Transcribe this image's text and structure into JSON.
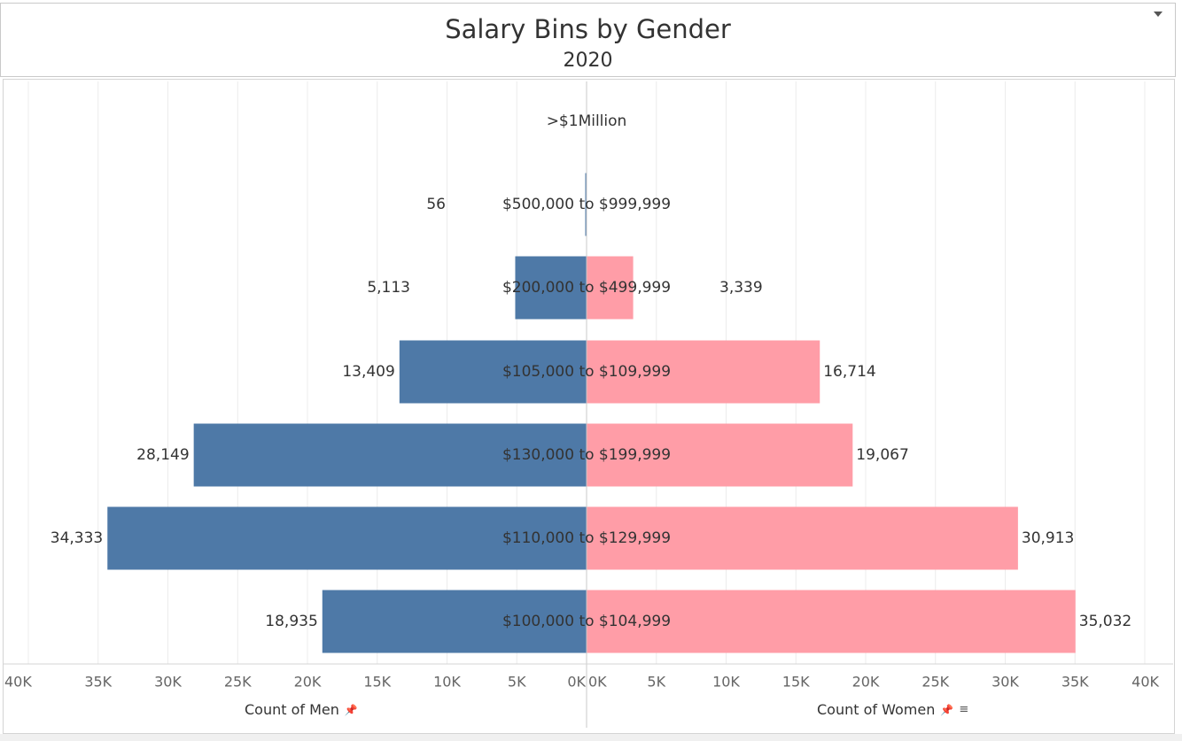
{
  "header": {
    "title": "Salary Bins by Gender",
    "subtitle": "2020"
  },
  "axes": {
    "left_title": "Count of Men",
    "right_title": "Count of Women",
    "left_ticks": [
      "40K",
      "35K",
      "30K",
      "25K",
      "20K",
      "15K",
      "10K",
      "5K",
      "0K"
    ],
    "right_ticks": [
      "0K",
      "5K",
      "10K",
      "15K",
      "20K",
      "25K",
      "30K",
      "35K",
      "40K"
    ]
  },
  "colors": {
    "men": "#4e79a7",
    "women": "#ff9da7"
  },
  "icons": {
    "left_title": "pin-icon",
    "right_title": [
      "pin-icon",
      "sort-descending-icon"
    ],
    "header": "dropdown-caret-icon"
  },
  "chart_data": {
    "type": "bar",
    "orientation": "horizontal-diverging",
    "categories": [
      ">$1Million",
      "$500,000 to $999,999",
      "$200,000 to $499,999",
      "$105,000 to $109,999",
      "$130,000 to $199,999",
      "$110,000 to $129,999",
      "$100,000 to $104,999"
    ],
    "series": [
      {
        "name": "Count of Men",
        "values": [
          null,
          56,
          5113,
          13409,
          28149,
          34333,
          18935
        ],
        "labels": [
          "",
          "56",
          "5,113",
          "13,409",
          "28,149",
          "34,333",
          "18,935"
        ]
      },
      {
        "name": "Count of Women",
        "values": [
          null,
          null,
          3339,
          16714,
          19067,
          30913,
          35032
        ],
        "labels": [
          "",
          "",
          "3,339",
          "16,714",
          "19,067",
          "30,913",
          "35,032"
        ]
      }
    ],
    "title": "Salary Bins by Gender",
    "subtitle": "2020",
    "xlim": [
      0,
      40000
    ],
    "grid": true
  }
}
